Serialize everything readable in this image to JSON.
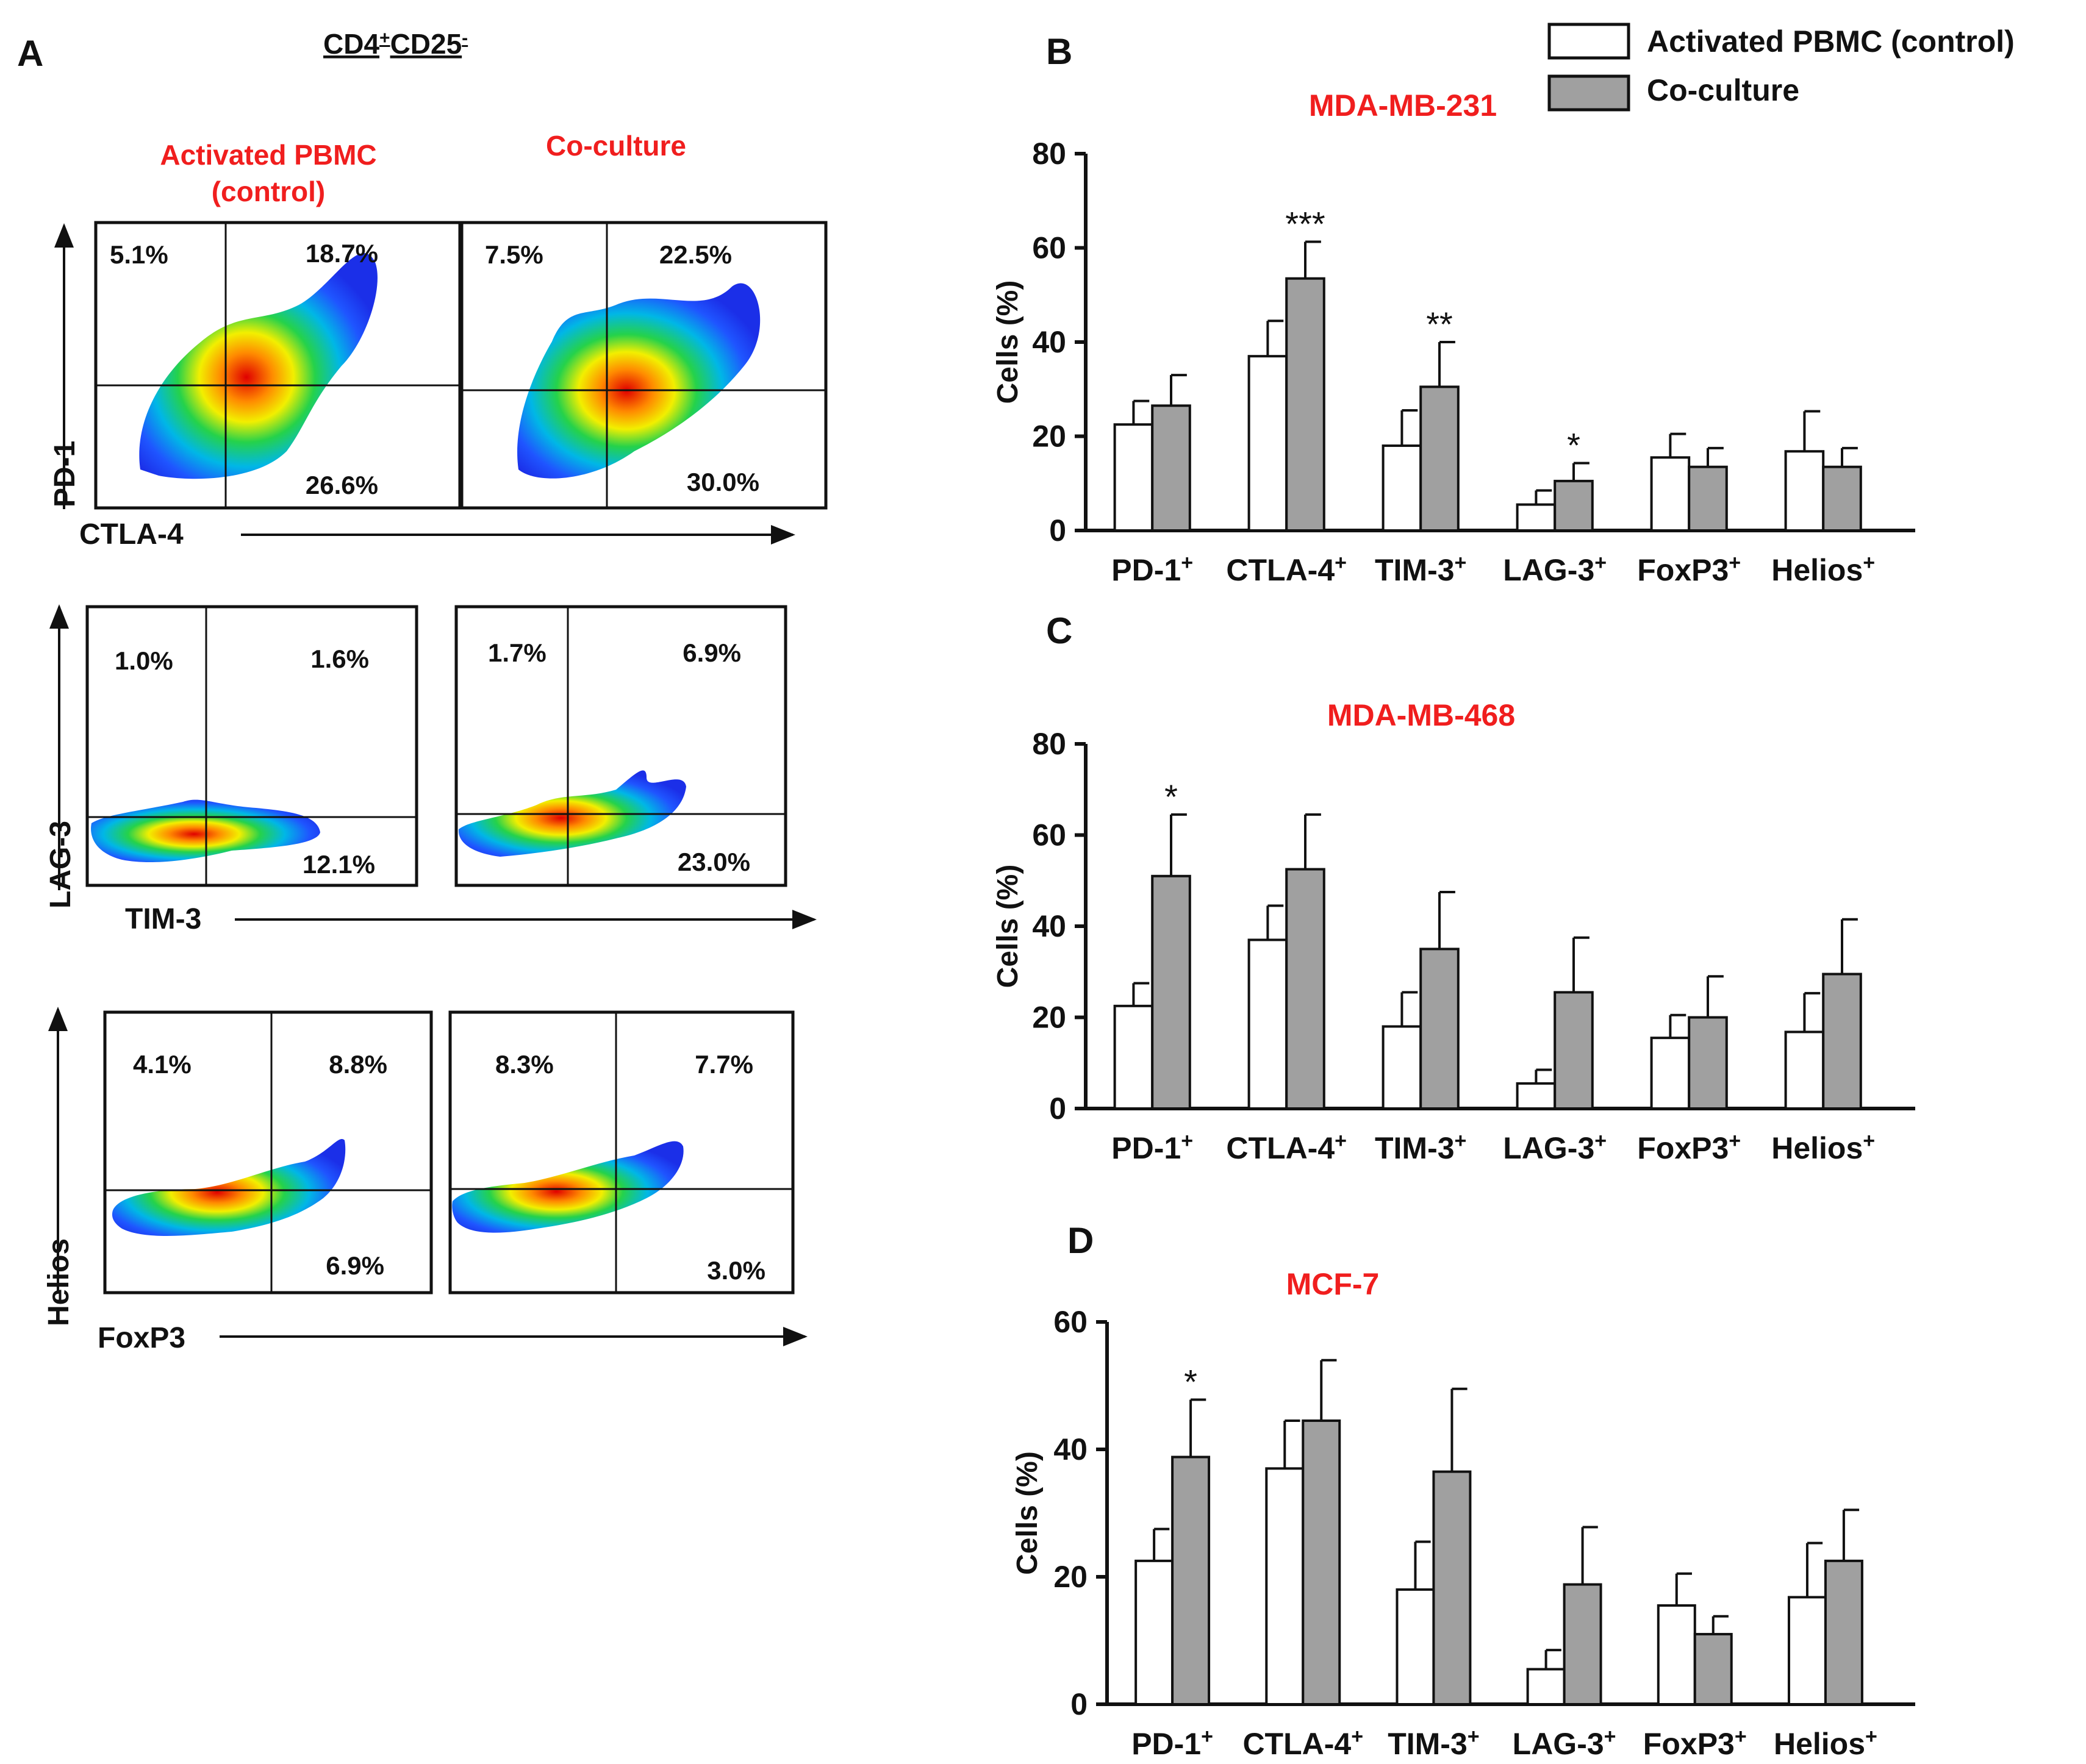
{
  "colors": {
    "red_label": "#f01e1e",
    "control_fill": "#ffffff",
    "coculture_fill": "#a0a0a0",
    "axis": "#111111",
    "flow_low": "#1a3cff",
    "flow_high": "#e00000"
  },
  "legend": {
    "control": "Activated PBMC (control)",
    "coculture": "Co-culture"
  },
  "flow": {
    "panel_letter": "A",
    "title_main": "CD4",
    "title_sup1": "+",
    "title_mid": "CD25",
    "title_sup2": "-",
    "col_control_line1": "Activated PBMC",
    "col_control_line2": "(control)",
    "col_coculture": "Co-culture",
    "rows": [
      {
        "y_label": "PD-1",
        "x_label": "CTLA-4",
        "control": {
          "ul": "5.1%",
          "ur": "18.7%",
          "lr": "26.6%"
        },
        "coculture": {
          "ul": "7.5%",
          "ur": "22.5%",
          "lr": "30.0%"
        }
      },
      {
        "y_label": "LAG-3",
        "x_label": "TIM-3",
        "control": {
          "ul": "1.0%",
          "ur": "1.6%",
          "lr": "12.1%"
        },
        "coculture": {
          "ul": "1.7%",
          "ur": "6.9%",
          "lr": "23.0%"
        }
      },
      {
        "y_label": "Helios",
        "x_label": "FoxP3",
        "control": {
          "ul": "4.1%",
          "ur": "8.8%",
          "lr": "6.9%"
        },
        "coculture": {
          "ul": "8.3%",
          "ur": "7.7%",
          "lr": "3.0%"
        }
      }
    ]
  },
  "chart_data": [
    {
      "panel": "B",
      "type": "bar",
      "title": "MDA-MB-231",
      "ylabel": "Cells (%)",
      "xlabel": "",
      "ylim": [
        0,
        80
      ],
      "yticks": [
        0,
        20,
        40,
        60,
        80
      ],
      "categories": [
        "PD-1+",
        "CTLA-4+",
        "TIM-3+",
        "LAG-3+",
        "FoxP3+",
        "Helios+"
      ],
      "series": [
        {
          "name": "Activated PBMC (control)",
          "values": [
            22.5,
            37,
            18,
            5.5,
            15.5,
            16.8
          ],
          "errors": [
            5,
            7.5,
            7.5,
            3,
            5,
            8.5
          ]
        },
        {
          "name": "Co-culture",
          "values": [
            26.5,
            53.5,
            30.5,
            10.5,
            13.5,
            13.5
          ],
          "errors": [
            6.5,
            7.8,
            9.5,
            3.8,
            4,
            4
          ]
        }
      ],
      "significance": [
        "",
        "***",
        "**",
        "*",
        "",
        ""
      ]
    },
    {
      "panel": "C",
      "type": "bar",
      "title": "MDA-MB-468",
      "ylabel": "Cells (%)",
      "xlabel": "",
      "ylim": [
        0,
        80
      ],
      "yticks": [
        0,
        20,
        40,
        60,
        80
      ],
      "categories": [
        "PD-1+",
        "CTLA-4+",
        "TIM-3+",
        "LAG-3+",
        "FoxP3+",
        "Helios+"
      ],
      "series": [
        {
          "name": "Activated PBMC (control)",
          "values": [
            22.5,
            37,
            18,
            5.5,
            15.5,
            16.8
          ],
          "errors": [
            5,
            7.5,
            7.5,
            3,
            5,
            8.5
          ]
        },
        {
          "name": "Co-culture",
          "values": [
            51,
            52.5,
            35,
            25.5,
            20,
            29.5
          ],
          "errors": [
            13.5,
            12,
            12.5,
            12,
            9,
            12
          ]
        }
      ],
      "significance": [
        "*",
        "",
        "",
        "",
        "",
        ""
      ]
    },
    {
      "panel": "D",
      "type": "bar",
      "title": "MCF-7",
      "ylabel": "Cells (%)",
      "xlabel": "",
      "ylim": [
        0,
        60
      ],
      "yticks": [
        0,
        20,
        40,
        60
      ],
      "categories": [
        "PD-1+",
        "CTLA-4+",
        "TIM-3+",
        "LAG-3+",
        "FoxP3+",
        "Helios+"
      ],
      "series": [
        {
          "name": "Activated PBMC (control)",
          "values": [
            22.5,
            37,
            18,
            5.5,
            15.5,
            16.8
          ],
          "errors": [
            5,
            7.5,
            7.5,
            3,
            5,
            8.5
          ]
        },
        {
          "name": "Co-culture",
          "values": [
            38.8,
            44.5,
            36.5,
            18.8,
            11,
            22.5
          ],
          "errors": [
            9,
            9.5,
            13,
            9,
            2.8,
            8
          ]
        }
      ],
      "significance": [
        "*",
        "",
        "",
        "",
        "",
        ""
      ]
    }
  ]
}
